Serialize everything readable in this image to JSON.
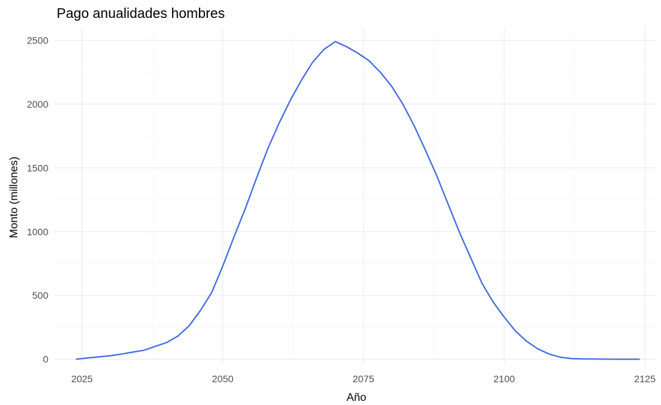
{
  "chart_data": {
    "type": "line",
    "title": "Pago anualidades hombres",
    "xlabel": "Año",
    "ylabel": "Monto (millones)",
    "xlim": [
      2020,
      2127
    ],
    "ylim": [
      -40,
      2600
    ],
    "x_ticks": [
      2025,
      2050,
      2075,
      2100,
      2125
    ],
    "y_ticks": [
      0,
      500,
      1000,
      1500,
      2000,
      2500
    ],
    "grid": true,
    "legend": "none",
    "series": [
      {
        "color": "#4169e1",
        "points": [
          [
            2024,
            0
          ],
          [
            2026,
            10
          ],
          [
            2028,
            18
          ],
          [
            2030,
            27
          ],
          [
            2032,
            40
          ],
          [
            2034,
            55
          ],
          [
            2036,
            70
          ],
          [
            2038,
            100
          ],
          [
            2040,
            130
          ],
          [
            2042,
            180
          ],
          [
            2044,
            260
          ],
          [
            2046,
            380
          ],
          [
            2048,
            520
          ],
          [
            2050,
            730
          ],
          [
            2052,
            960
          ],
          [
            2054,
            1180
          ],
          [
            2056,
            1420
          ],
          [
            2058,
            1650
          ],
          [
            2060,
            1850
          ],
          [
            2062,
            2030
          ],
          [
            2064,
            2190
          ],
          [
            2066,
            2330
          ],
          [
            2068,
            2430
          ],
          [
            2070,
            2490
          ],
          [
            2072,
            2450
          ],
          [
            2074,
            2400
          ],
          [
            2076,
            2340
          ],
          [
            2078,
            2250
          ],
          [
            2080,
            2140
          ],
          [
            2082,
            2000
          ],
          [
            2084,
            1830
          ],
          [
            2086,
            1640
          ],
          [
            2088,
            1440
          ],
          [
            2090,
            1220
          ],
          [
            2092,
            1000
          ],
          [
            2094,
            800
          ],
          [
            2096,
            600
          ],
          [
            2098,
            450
          ],
          [
            2100,
            330
          ],
          [
            2102,
            220
          ],
          [
            2104,
            140
          ],
          [
            2106,
            80
          ],
          [
            2108,
            40
          ],
          [
            2110,
            15
          ],
          [
            2112,
            5
          ],
          [
            2114,
            2
          ],
          [
            2116,
            1
          ],
          [
            2120,
            0
          ],
          [
            2124,
            0
          ]
        ]
      }
    ]
  }
}
